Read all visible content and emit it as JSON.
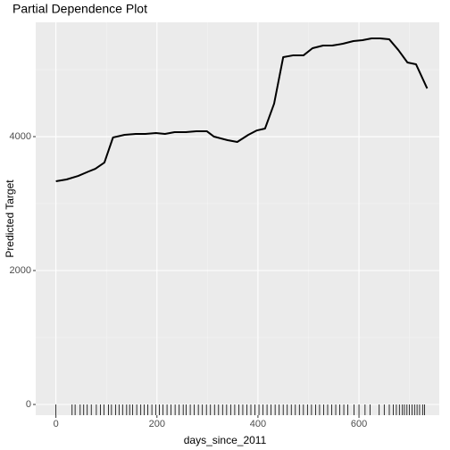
{
  "chart_data": {
    "type": "line",
    "title": "Partial Dependence Plot",
    "x_label": "days_since_2011",
    "y_label": "Predicted Target",
    "series": [
      {
        "name": "Predicted Target",
        "color": "#000000",
        "x": [
          0,
          21,
          44,
          65,
          78,
          96,
          113,
          136,
          158,
          177,
          198,
          216,
          235,
          257,
          278,
          299,
          313,
          340,
          359,
          381,
          398,
          414,
          432,
          450,
          469,
          490,
          508,
          529,
          547,
          568,
          589,
          607,
          625,
          642,
          660,
          678,
          696,
          713,
          735
        ],
        "values": [
          3333,
          3360,
          3413,
          3480,
          3520,
          3613,
          3987,
          4027,
          4040,
          4040,
          4053,
          4040,
          4067,
          4067,
          4080,
          4080,
          4000,
          3947,
          3920,
          4027,
          4093,
          4120,
          4493,
          5187,
          5213,
          5213,
          5320,
          5360,
          5360,
          5387,
          5427,
          5440,
          5467,
          5467,
          5453,
          5293,
          5107,
          5080,
          4720
        ]
      }
    ],
    "rug": [
      0,
      32,
      38,
      48,
      55,
      62,
      70,
      80,
      88,
      95,
      104,
      110,
      118,
      125,
      132,
      140,
      146,
      152,
      160,
      168,
      175,
      182,
      190,
      198,
      205,
      212,
      220,
      228,
      236,
      244,
      252,
      258,
      266,
      274,
      282,
      290,
      298,
      306,
      314,
      322,
      330,
      338,
      346,
      354,
      362,
      370,
      378,
      386,
      394,
      402,
      410,
      418,
      426,
      434,
      442,
      450,
      458,
      466,
      474,
      482,
      490,
      498,
      506,
      514,
      522,
      530,
      538,
      546,
      554,
      562,
      570,
      578,
      590,
      600,
      612,
      622,
      640,
      650,
      660,
      668,
      674,
      680,
      686,
      690,
      695,
      700,
      705,
      710,
      715,
      720,
      726,
      730
    ],
    "rug_color": "#000000",
    "xlim": [
      -40,
      759
    ],
    "ylim": [
      -160,
      5707
    ],
    "xticks": [
      0,
      200,
      400,
      600
    ],
    "yticks": [
      0,
      2000,
      4000
    ],
    "xminor": [
      100,
      300,
      500,
      700
    ],
    "yminor": [
      1000,
      3000,
      5000
    ],
    "grid": true
  }
}
